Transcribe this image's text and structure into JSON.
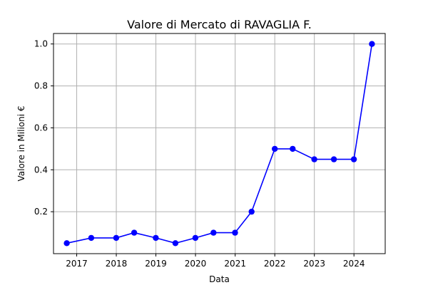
{
  "chart_data": {
    "type": "line",
    "title": "Valore di Mercato di RAVAGLIA F.",
    "xlabel": "Data",
    "ylabel": "Valore in Milioni €",
    "x": [
      "2016-10-01",
      "2017-05-15",
      "2017-12-31",
      "2018-06-15",
      "2018-12-31",
      "2019-06-30",
      "2019-12-31",
      "2020-06-15",
      "2020-12-31",
      "2021-06-01",
      "2022-01-01",
      "2022-06-15",
      "2022-12-31",
      "2023-06-30",
      "2023-12-31",
      "2024-06-15"
    ],
    "series": [
      {
        "values": [
          0.05,
          0.075,
          0.075,
          0.1,
          0.075,
          0.05,
          0.075,
          0.1,
          0.1,
          0.2,
          0.5,
          0.5,
          0.45,
          0.45,
          0.45,
          1.0
        ]
      }
    ],
    "x_ticks": [
      "2017",
      "2018",
      "2019",
      "2020",
      "2021",
      "2022",
      "2023",
      "2024"
    ],
    "y_ticks": [
      "0.2",
      "0.4",
      "0.6",
      "0.8",
      "1.0"
    ],
    "xlim": [
      "2016-06-01",
      "2024-10-15"
    ],
    "ylim": [
      0.0,
      1.05
    ],
    "grid": true,
    "line_color": "#0000ff",
    "marker": "circle"
  }
}
